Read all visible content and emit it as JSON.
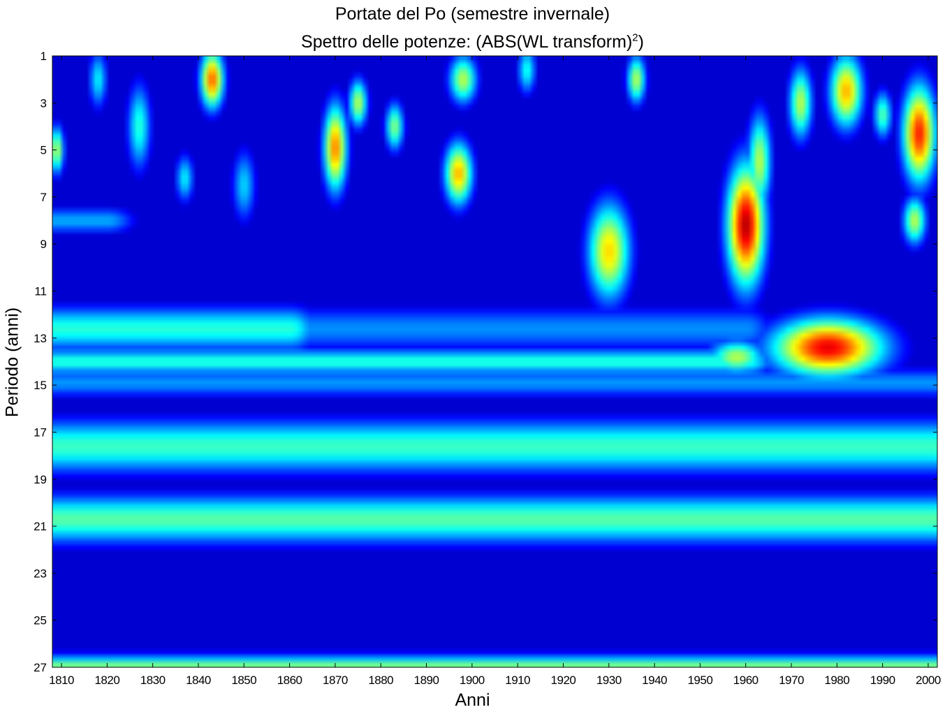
{
  "chart_data": {
    "type": "heatmap",
    "title": "Portate del Po (semestre invernale)",
    "subtitle_prefix": "Spettro delle potenze: (ABS(WL transform)",
    "subtitle_sup": "2",
    "subtitle_suffix": ")",
    "xlabel": "Anni",
    "ylabel": "Periodo (anni)",
    "xlim": [
      1808,
      2002
    ],
    "ylim": [
      1,
      27
    ],
    "y_reversed": true,
    "x_ticks": [
      1810,
      1820,
      1830,
      1840,
      1850,
      1860,
      1870,
      1880,
      1890,
      1900,
      1910,
      1920,
      1930,
      1940,
      1950,
      1960,
      1970,
      1980,
      1990,
      2000
    ],
    "y_ticks": [
      1,
      3,
      5,
      7,
      9,
      11,
      13,
      15,
      17,
      19,
      21,
      23,
      25,
      27
    ],
    "colormap": "jet",
    "colormap_stops": [
      "#000080",
      "#0000ff",
      "#00ffff",
      "#ffff00",
      "#ff0000",
      "#800000"
    ],
    "background_level": 0.07,
    "bands": [
      {
        "period": 8.0,
        "width": 0.55,
        "level": 0.28,
        "x_from": 1808,
        "x_to": 1820
      },
      {
        "period": 12.6,
        "width": 0.9,
        "level": 0.4,
        "x_from": 1808,
        "x_to": 1860
      },
      {
        "period": 12.6,
        "width": 0.9,
        "level": 0.25,
        "x_from": 1860,
        "x_to": 1960
      },
      {
        "period": 14.0,
        "width": 0.55,
        "level": 0.4,
        "x_from": 1808,
        "x_to": 1960
      },
      {
        "period": 14.9,
        "width": 0.6,
        "level": 0.26,
        "x_from": 1808,
        "x_to": 2002
      },
      {
        "period": 17.6,
        "width": 1.1,
        "level": 0.42,
        "x_from": 1808,
        "x_to": 2002
      },
      {
        "period": 20.7,
        "width": 1.0,
        "level": 0.45,
        "x_from": 1808,
        "x_to": 2002
      },
      {
        "period": 27.0,
        "width": 0.5,
        "level": 0.5,
        "x_from": 1808,
        "x_to": 2002
      }
    ],
    "blobs": [
      {
        "x": 1843,
        "y": 2.0,
        "rx": 2.5,
        "ry": 1.2,
        "level": 0.78
      },
      {
        "x": 1870,
        "y": 4.9,
        "rx": 2.5,
        "ry": 1.8,
        "level": 0.75
      },
      {
        "x": 1875,
        "y": 3.0,
        "rx": 2.0,
        "ry": 1.0,
        "level": 0.55
      },
      {
        "x": 1883,
        "y": 4.0,
        "rx": 2.0,
        "ry": 1.0,
        "level": 0.5
      },
      {
        "x": 1897,
        "y": 6.0,
        "rx": 3.0,
        "ry": 1.3,
        "level": 0.7
      },
      {
        "x": 1898,
        "y": 2.0,
        "rx": 3.0,
        "ry": 1.0,
        "level": 0.55
      },
      {
        "x": 1912,
        "y": 1.6,
        "rx": 2.0,
        "ry": 1.0,
        "level": 0.38
      },
      {
        "x": 1930,
        "y": 9.3,
        "rx": 4.5,
        "ry": 2.0,
        "level": 0.66
      },
      {
        "x": 1936,
        "y": 2.0,
        "rx": 2.0,
        "ry": 1.0,
        "level": 0.55
      },
      {
        "x": 1809,
        "y": 5.0,
        "rx": 1.5,
        "ry": 1.0,
        "level": 0.55
      },
      {
        "x": 1827,
        "y": 4.0,
        "rx": 2.5,
        "ry": 1.8,
        "level": 0.4
      },
      {
        "x": 1837,
        "y": 6.2,
        "rx": 2.0,
        "ry": 1.0,
        "level": 0.35
      },
      {
        "x": 1850,
        "y": 6.5,
        "rx": 2.5,
        "ry": 1.5,
        "level": 0.32
      },
      {
        "x": 1818,
        "y": 2.0,
        "rx": 2.0,
        "ry": 1.2,
        "level": 0.35
      },
      {
        "x": 1960,
        "y": 8.2,
        "rx": 4.0,
        "ry": 2.5,
        "level": 0.95
      },
      {
        "x": 1963,
        "y": 5.5,
        "rx": 2.5,
        "ry": 2.0,
        "level": 0.55
      },
      {
        "x": 1972,
        "y": 3.0,
        "rx": 2.5,
        "ry": 1.5,
        "level": 0.55
      },
      {
        "x": 1982,
        "y": 2.5,
        "rx": 3.5,
        "ry": 1.5,
        "level": 0.7
      },
      {
        "x": 1990,
        "y": 3.5,
        "rx": 2.0,
        "ry": 1.0,
        "level": 0.45
      },
      {
        "x": 1998,
        "y": 4.3,
        "rx": 3.5,
        "ry": 2.0,
        "level": 0.85
      },
      {
        "x": 1997,
        "y": 8.0,
        "rx": 2.5,
        "ry": 1.0,
        "level": 0.55
      },
      {
        "x": 1978,
        "y": 13.4,
        "rx": 12.0,
        "ry": 1.2,
        "level": 0.9
      },
      {
        "x": 1958,
        "y": 13.8,
        "rx": 6.0,
        "ry": 0.7,
        "level": 0.55
      }
    ]
  }
}
